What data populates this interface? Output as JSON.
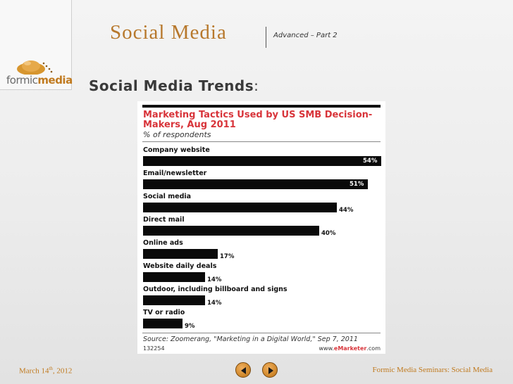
{
  "logo": {
    "part1": "formic",
    "part2": "media"
  },
  "header": {
    "title": "Social Media",
    "subtitle": "Advanced – Part 2",
    "heading": "Social Media Trends",
    "heading_suffix": ":"
  },
  "chart_data": {
    "type": "bar",
    "orientation": "horizontal",
    "title": "Marketing Tactics Used by US SMB Decision-Makers, Aug 2011",
    "subtitle": "% of respondents",
    "categories": [
      "Company website",
      "Email/newsletter",
      "Social media",
      "Direct mail",
      "Online ads",
      "Website daily deals",
      "Outdoor, including billboard and signs",
      "TV or radio"
    ],
    "values": [
      54,
      51,
      44,
      40,
      17,
      14,
      14,
      9
    ],
    "value_labels": [
      "54%",
      "51%",
      "44%",
      "40%",
      "17%",
      "14%",
      "14%",
      "9%"
    ],
    "unit": "%",
    "source": "Source: Zoomerang, \"Marketing in a Digital World,\" Sep 7, 2011",
    "id": "132254",
    "brand": {
      "prefix": "www.",
      "name": "eMarketer",
      "suffix": ".com"
    },
    "colors": {
      "bar": "#0a0a0a",
      "title": "#d8343a"
    }
  },
  "footer": {
    "date_prefix": "March 14",
    "date_sup": "th",
    "date_suffix": ", 2012",
    "right": "Formic Media Seminars: Social Media"
  },
  "nav": {
    "prev_icon": "triangle-left-icon",
    "next_icon": "triangle-right-icon"
  },
  "colors": {
    "accent": "#c07a1f",
    "title": "#b7782c"
  }
}
